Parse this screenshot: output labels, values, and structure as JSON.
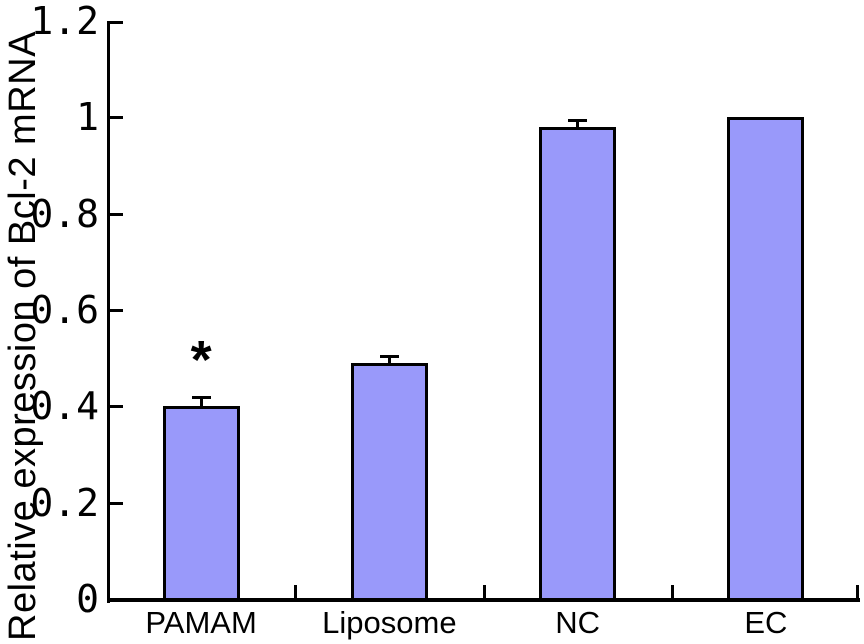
{
  "chart_data": {
    "type": "bar",
    "title": "",
    "xlabel": "",
    "ylabel": "Relative expression of Bcl-2 mRNA",
    "categories": [
      "PAMAM",
      "Liposome",
      "NC",
      "EC"
    ],
    "values": [
      0.4,
      0.49,
      0.98,
      1.0
    ],
    "errors_plus": [
      0.02,
      0.015,
      0.015,
      0
    ],
    "ylim": [
      0,
      1.2
    ],
    "ytick_step": 0.2,
    "yticks": [
      {
        "value": 0,
        "label": "0"
      },
      {
        "value": 0.2,
        "label": "0.2"
      },
      {
        "value": 0.4,
        "label": "0.4"
      },
      {
        "value": 0.6,
        "label": "0.6"
      },
      {
        "value": 0.8,
        "label": "0.8"
      },
      {
        "value": 1,
        "label": "1"
      },
      {
        "value": 1.2,
        "label": "1.2"
      }
    ],
    "annotations": [
      {
        "category_index": 0,
        "category": "PAMAM",
        "text": "*",
        "y": 0.51
      }
    ],
    "grid": false,
    "legend": "none",
    "colors": {
      "bar_fill": "#9999FA",
      "bar_border": "#000000",
      "axis": "#000000",
      "text": "#000000",
      "background": "#ffffff"
    }
  }
}
